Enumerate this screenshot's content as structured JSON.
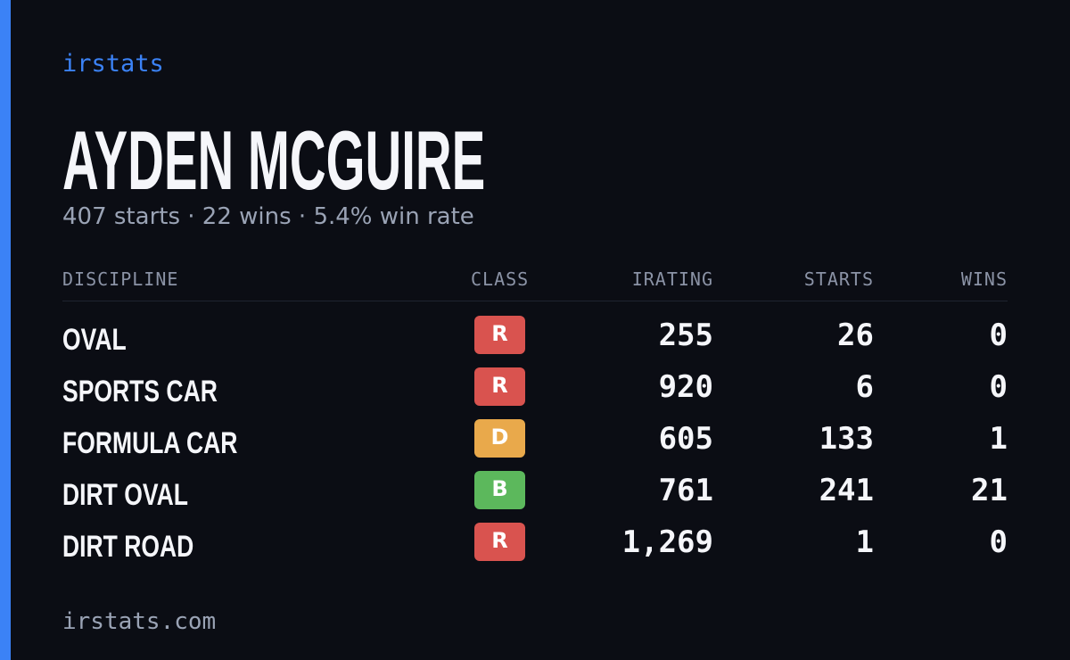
{
  "brand": "irstats",
  "driver": {
    "name": "AYDEN MCGUIRE",
    "summary": "407 starts · 22 wins · 5.4% win rate"
  },
  "table": {
    "headers": [
      "DISCIPLINE",
      "CLASS",
      "IRATING",
      "STARTS",
      "WINS"
    ],
    "rows": [
      [
        "OVAL",
        "R",
        "255",
        "26",
        "0"
      ],
      [
        "SPORTS CAR",
        "R",
        "920",
        "6",
        "0"
      ],
      [
        "FORMULA CAR",
        "D",
        "605",
        "133",
        "1"
      ],
      [
        "DIRT OVAL",
        "B",
        "761",
        "241",
        "21"
      ],
      [
        "DIRT ROAD",
        "R",
        "1,269",
        "1",
        "0"
      ]
    ]
  },
  "footer": "irstats.com"
}
